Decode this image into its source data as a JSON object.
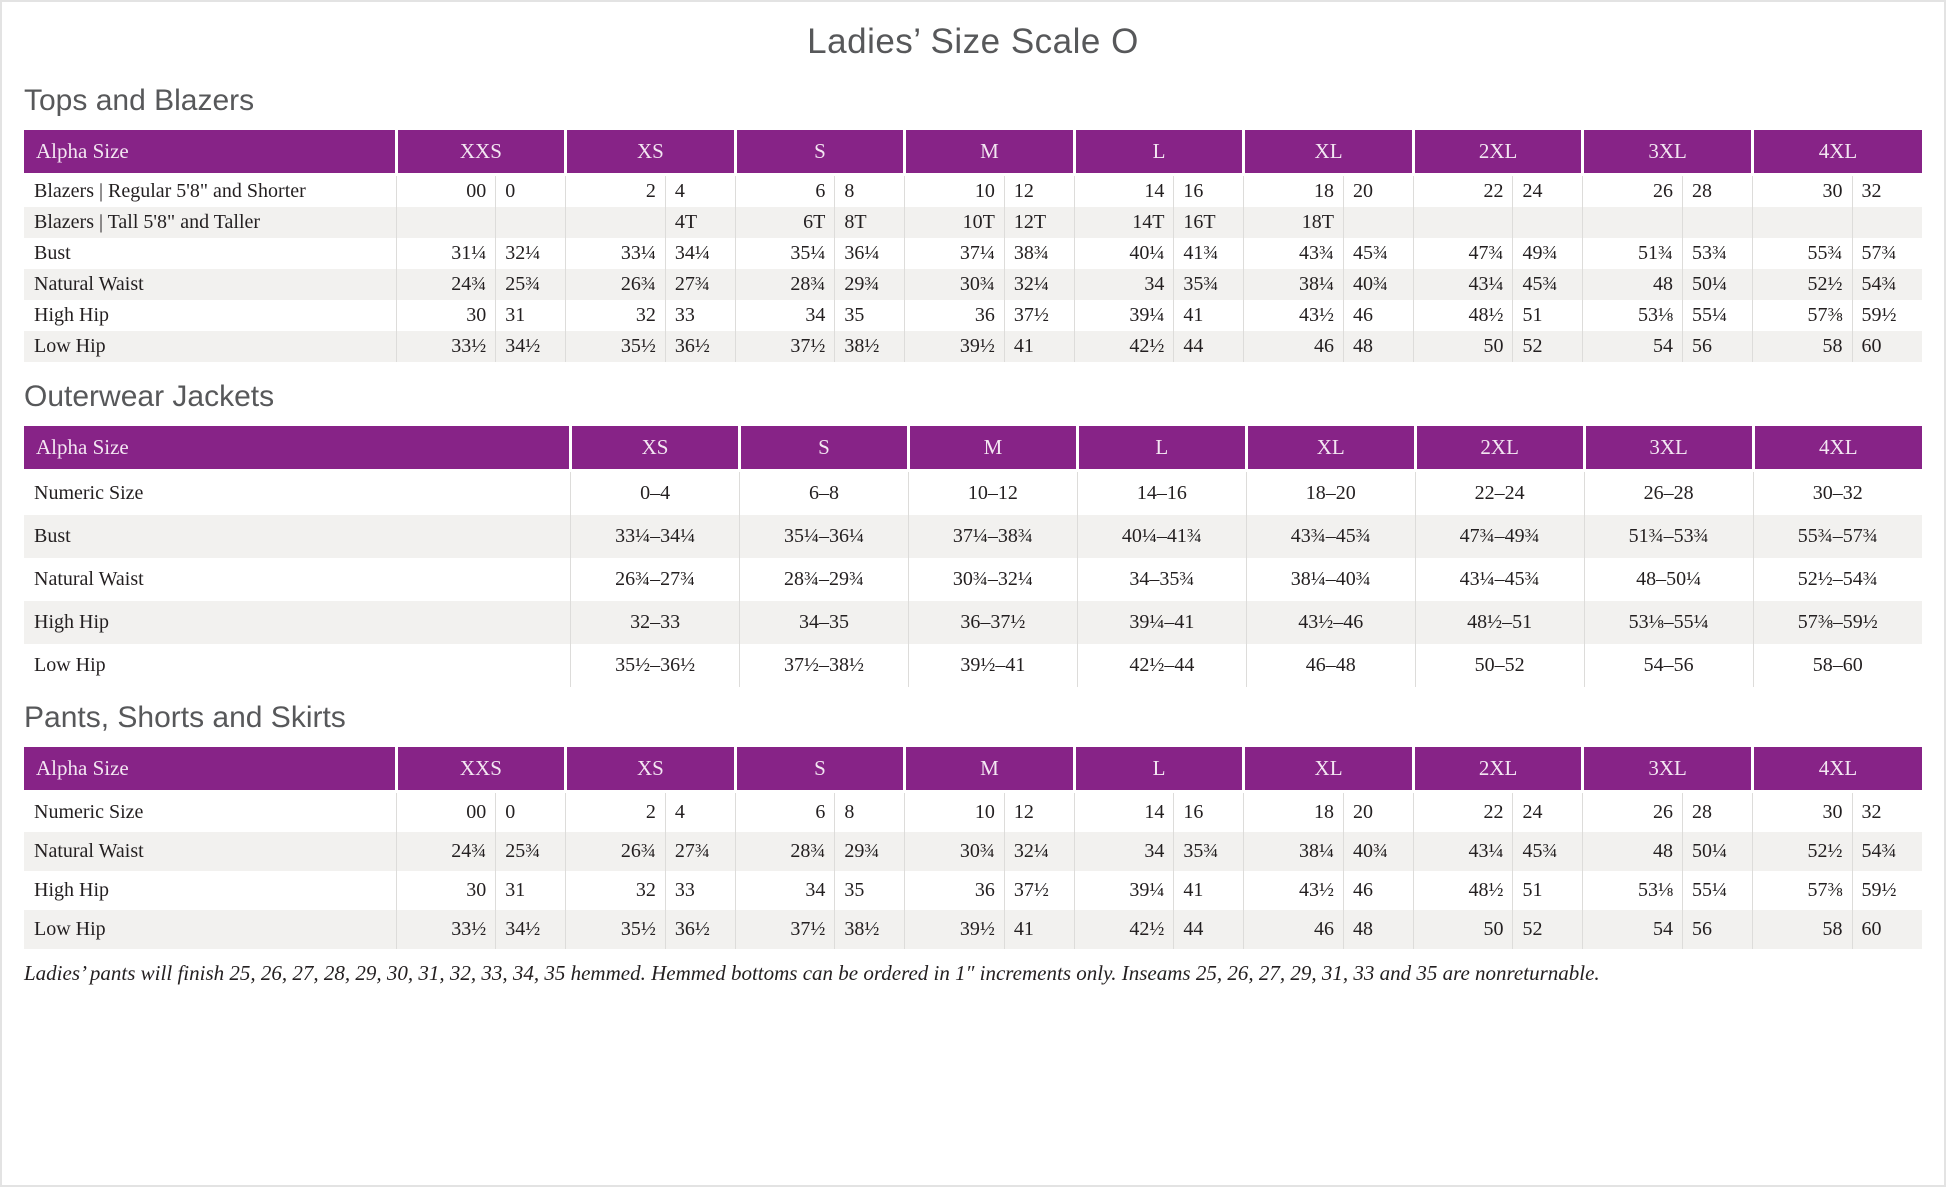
{
  "page": {
    "title": "Ladies’ Size Scale O",
    "footnote": "Ladies’ pants will finish 25, 26, 27, 28, 29, 30, 31, 32, 33, 34, 35 hemmed. Hemmed bottoms can be ordered in 1″ increments only. Inseams 25, 26, 27, 29, 31, 33 and 35 are nonreturnable."
  },
  "colors": {
    "header_background": "#872387",
    "header_text": "#f3e6f2",
    "heading_text": "#57585a",
    "body_text": "#231f20",
    "row_stripe": "#f2f1ef",
    "grid_line": "#dddcda"
  },
  "sections": [
    {
      "heading": "Tops and Blazers",
      "table": {
        "type": "paired",
        "header_label": "Alpha Size",
        "groups": [
          "XXS",
          "XS",
          "S",
          "M",
          "L",
          "XL",
          "2XL",
          "3XL",
          "4XL"
        ],
        "rows": [
          {
            "label": "Blazers  |  Regular 5'8\" and Shorter",
            "values": [
              "00",
              "0",
              "2",
              "4",
              "6",
              "8",
              "10",
              "12",
              "14",
              "16",
              "18",
              "20",
              "22",
              "24",
              "26",
              "28",
              "30",
              "32"
            ]
          },
          {
            "label": "Blazers  |  Tall 5'8\" and Taller",
            "values": [
              "",
              "",
              "",
              "4T",
              "6T",
              "8T",
              "10T",
              "12T",
              "14T",
              "16T",
              "18T",
              "",
              "",
              "",
              "",
              "",
              "",
              ""
            ]
          },
          {
            "label": "Bust",
            "values": [
              "31¼",
              "32¼",
              "33¼",
              "34¼",
              "35¼",
              "36¼",
              "37¼",
              "38¾",
              "40¼",
              "41¾",
              "43¾",
              "45¾",
              "47¾",
              "49¾",
              "51¾",
              "53¾",
              "55¾",
              "57¾"
            ]
          },
          {
            "label": "Natural Waist",
            "values": [
              "24¾",
              "25¾",
              "26¾",
              "27¾",
              "28¾",
              "29¾",
              "30¾",
              "32¼",
              "34",
              "35¾",
              "38¼",
              "40¾",
              "43¼",
              "45¾",
              "48",
              "50¼",
              "52½",
              "54¾"
            ]
          },
          {
            "label": "High Hip",
            "values": [
              "30",
              "31",
              "32",
              "33",
              "34",
              "35",
              "36",
              "37½",
              "39¼",
              "41",
              "43½",
              "46",
              "48½",
              "51",
              "53⅛",
              "55¼",
              "57⅜",
              "59½"
            ]
          },
          {
            "label": "Low Hip",
            "values": [
              "33½",
              "34½",
              "35½",
              "36½",
              "37½",
              "38½",
              "39½",
              "41",
              "42½",
              "44",
              "46",
              "48",
              "50",
              "52",
              "54",
              "56",
              "58",
              "60"
            ]
          }
        ]
      }
    },
    {
      "heading": "Outerwear Jackets",
      "table": {
        "type": "single",
        "header_label": "Alpha Size",
        "groups": [
          "XS",
          "S",
          "M",
          "L",
          "XL",
          "2XL",
          "3XL",
          "4XL"
        ],
        "rows": [
          {
            "label": "Numeric Size",
            "values": [
              "0–4",
              "6–8",
              "10–12",
              "14–16",
              "18–20",
              "22–24",
              "26–28",
              "30–32"
            ]
          },
          {
            "label": "Bust",
            "values": [
              "33¼–34¼",
              "35¼–36¼",
              "37¼–38¾",
              "40¼–41¾",
              "43¾–45¾",
              "47¾–49¾",
              "51¾–53¾",
              "55¾–57¾"
            ]
          },
          {
            "label": "Natural Waist",
            "values": [
              "26¾–27¾",
              "28¾–29¾",
              "30¾–32¼",
              "34–35¾",
              "38¼–40¾",
              "43¼–45¾",
              "48–50¼",
              "52½–54¾"
            ]
          },
          {
            "label": "High Hip",
            "values": [
              "32–33",
              "34–35",
              "36–37½",
              "39¼–41",
              "43½–46",
              "48½–51",
              "53⅛–55¼",
              "57⅜–59½"
            ]
          },
          {
            "label": "Low Hip",
            "values": [
              "35½–36½",
              "37½–38½",
              "39½–41",
              "42½–44",
              "46–48",
              "50–52",
              "54–56",
              "58–60"
            ]
          }
        ]
      }
    },
    {
      "heading": "Pants, Shorts and Skirts",
      "table": {
        "type": "paired",
        "header_label": "Alpha Size",
        "groups": [
          "XXS",
          "XS",
          "S",
          "M",
          "L",
          "XL",
          "2XL",
          "3XL",
          "4XL"
        ],
        "rows": [
          {
            "label": "Numeric Size",
            "values": [
              "00",
              "0",
              "2",
              "4",
              "6",
              "8",
              "10",
              "12",
              "14",
              "16",
              "18",
              "20",
              "22",
              "24",
              "26",
              "28",
              "30",
              "32"
            ]
          },
          {
            "label": "Natural Waist",
            "values": [
              "24¾",
              "25¾",
              "26¾",
              "27¾",
              "28¾",
              "29¾",
              "30¾",
              "32¼",
              "34",
              "35¾",
              "38¼",
              "40¾",
              "43¼",
              "45¾",
              "48",
              "50¼",
              "52½",
              "54¾"
            ]
          },
          {
            "label": "High Hip",
            "values": [
              "30",
              "31",
              "32",
              "33",
              "34",
              "35",
              "36",
              "37½",
              "39¼",
              "41",
              "43½",
              "46",
              "48½",
              "51",
              "53⅛",
              "55¼",
              "57⅜",
              "59½"
            ]
          },
          {
            "label": "Low Hip",
            "values": [
              "33½",
              "34½",
              "35½",
              "36½",
              "37½",
              "38½",
              "39½",
              "41",
              "42½",
              "44",
              "46",
              "48",
              "50",
              "52",
              "54",
              "56",
              "58",
              "60"
            ]
          }
        ]
      }
    }
  ]
}
